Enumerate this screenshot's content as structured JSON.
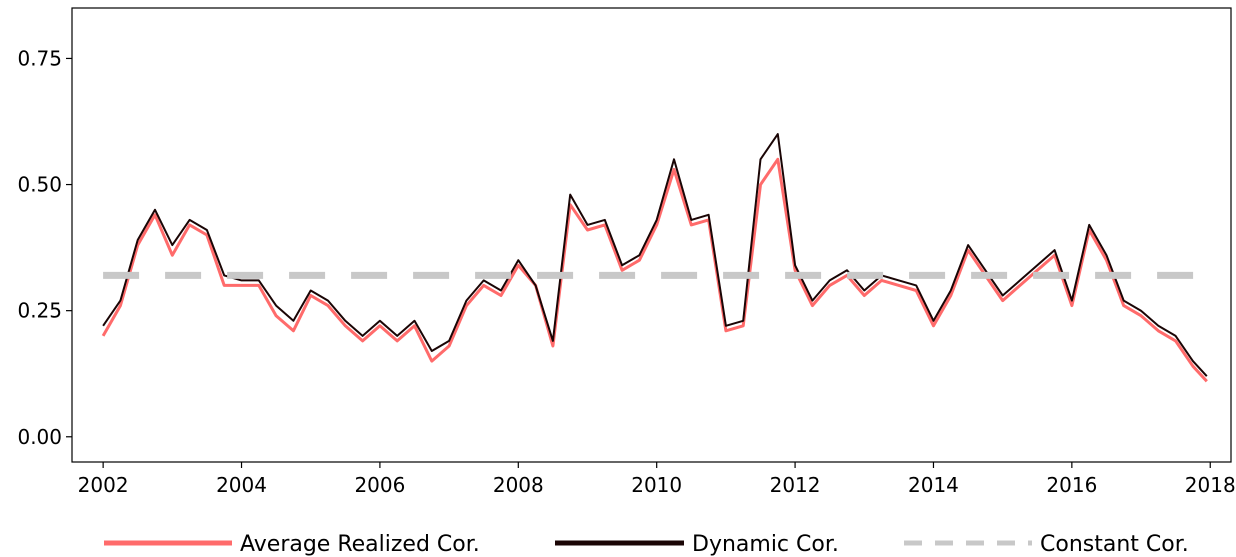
{
  "chart_data": {
    "type": "line",
    "title": "",
    "xlabel": "",
    "ylabel": "",
    "xlim": [
      2001.55,
      2018.3
    ],
    "ylim": [
      -0.05,
      0.85
    ],
    "xticks": [
      2002,
      2004,
      2006,
      2008,
      2010,
      2012,
      2014,
      2016,
      2018
    ],
    "xtick_labels": [
      "2002",
      "2004",
      "2006",
      "2008",
      "2010",
      "2012",
      "2014",
      "2016",
      "2018"
    ],
    "yticks": [
      0.0,
      0.25,
      0.5,
      0.75
    ],
    "ytick_labels": [
      "0.00",
      "0.25",
      "0.50",
      "0.75"
    ],
    "grid": false,
    "legend_position": "bottom-center",
    "x": [
      2002.0,
      2002.25,
      2002.5,
      2002.75,
      2003.0,
      2003.25,
      2003.5,
      2003.75,
      2004.0,
      2004.25,
      2004.5,
      2004.75,
      2005.0,
      2005.25,
      2005.5,
      2005.75,
      2006.0,
      2006.25,
      2006.5,
      2006.75,
      2007.0,
      2007.25,
      2007.5,
      2007.75,
      2008.0,
      2008.25,
      2008.5,
      2008.75,
      2009.0,
      2009.25,
      2009.5,
      2009.75,
      2010.0,
      2010.25,
      2010.5,
      2010.75,
      2011.0,
      2011.25,
      2011.5,
      2011.75,
      2012.0,
      2012.25,
      2012.5,
      2012.75,
      2013.0,
      2013.25,
      2013.5,
      2013.75,
      2014.0,
      2014.25,
      2014.5,
      2014.75,
      2015.0,
      2015.25,
      2015.5,
      2015.75,
      2016.0,
      2016.25,
      2016.5,
      2016.75,
      2017.0,
      2017.25,
      2017.5,
      2017.75,
      2017.95
    ],
    "series": [
      {
        "name": "Average Realized Cor.",
        "color": "#ff6b6b",
        "values": [
          0.2,
          0.26,
          0.38,
          0.44,
          0.36,
          0.42,
          0.4,
          0.3,
          0.3,
          0.3,
          0.24,
          0.21,
          0.28,
          0.26,
          0.22,
          0.19,
          0.22,
          0.19,
          0.22,
          0.15,
          0.18,
          0.26,
          0.3,
          0.28,
          0.34,
          0.3,
          0.18,
          0.46,
          0.41,
          0.42,
          0.33,
          0.35,
          0.42,
          0.53,
          0.42,
          0.43,
          0.21,
          0.22,
          0.5,
          0.55,
          0.33,
          0.26,
          0.3,
          0.32,
          0.28,
          0.31,
          0.3,
          0.29,
          0.22,
          0.28,
          0.37,
          0.32,
          0.27,
          0.3,
          0.33,
          0.36,
          0.26,
          0.41,
          0.35,
          0.26,
          0.24,
          0.21,
          0.19,
          0.14,
          0.11
        ]
      },
      {
        "name": "Dynamic Cor.",
        "color": "#1a0505",
        "values": [
          0.22,
          0.27,
          0.39,
          0.45,
          0.38,
          0.43,
          0.41,
          0.32,
          0.31,
          0.31,
          0.26,
          0.23,
          0.29,
          0.27,
          0.23,
          0.2,
          0.23,
          0.2,
          0.23,
          0.17,
          0.19,
          0.27,
          0.31,
          0.29,
          0.35,
          0.3,
          0.19,
          0.48,
          0.42,
          0.43,
          0.34,
          0.36,
          0.43,
          0.55,
          0.43,
          0.44,
          0.22,
          0.23,
          0.55,
          0.6,
          0.34,
          0.27,
          0.31,
          0.33,
          0.29,
          0.32,
          0.31,
          0.3,
          0.23,
          0.29,
          0.38,
          0.33,
          0.28,
          0.31,
          0.34,
          0.37,
          0.27,
          0.42,
          0.36,
          0.27,
          0.25,
          0.22,
          0.2,
          0.15,
          0.12
        ]
      },
      {
        "name": "Constant Cor.",
        "color": "#c8c8c8",
        "values": [
          0.32,
          0.32,
          0.32,
          0.32,
          0.32,
          0.32,
          0.32,
          0.32,
          0.32,
          0.32,
          0.32,
          0.32,
          0.32,
          0.32,
          0.32,
          0.32,
          0.32,
          0.32,
          0.32,
          0.32,
          0.32,
          0.32,
          0.32,
          0.32,
          0.32,
          0.32,
          0.32,
          0.32,
          0.32,
          0.32,
          0.32,
          0.32,
          0.32,
          0.32,
          0.32,
          0.32,
          0.32,
          0.32,
          0.32,
          0.32,
          0.32,
          0.32,
          0.32,
          0.32,
          0.32,
          0.32,
          0.32,
          0.32,
          0.32,
          0.32,
          0.32,
          0.32,
          0.32,
          0.32,
          0.32,
          0.32,
          0.32,
          0.32,
          0.32,
          0.32,
          0.32,
          0.32,
          0.32,
          0.32,
          0.32
        ]
      }
    ]
  }
}
